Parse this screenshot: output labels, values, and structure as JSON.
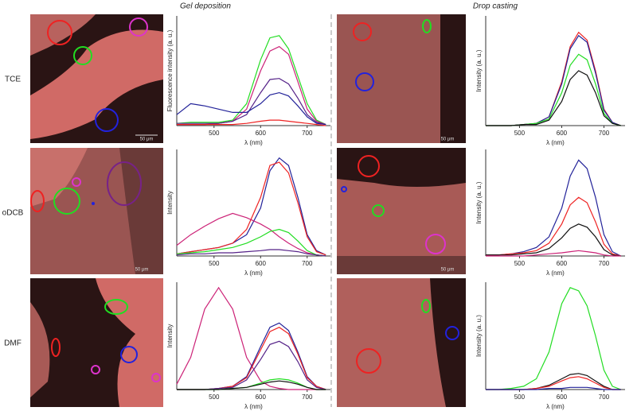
{
  "column_titles": [
    "Gel deposition",
    "Drop casting"
  ],
  "row_labels": [
    "TCE",
    "oDCB",
    "DMF"
  ],
  "scale_bar_labels": [
    "50 μm",
    "50 μm",
    "50 μm",
    "50 μm"
  ],
  "chart_data": [
    {
      "type": "line",
      "xlabel": "λ (nm)",
      "ylabel": "Fluorescence intensity (a. u.)",
      "x": [
        420,
        450,
        480,
        510,
        540,
        570,
        600,
        620,
        640,
        660,
        680,
        700,
        720,
        740
      ],
      "xlim": [
        420,
        750
      ],
      "xticks": [
        500,
        600,
        700
      ],
      "ylim": [
        0,
        1
      ],
      "series": [
        {
          "color": "#22dd22",
          "values": [
            0.02,
            0.03,
            0.03,
            0.03,
            0.05,
            0.2,
            0.6,
            0.8,
            0.82,
            0.7,
            0.45,
            0.2,
            0.05,
            0.01
          ]
        },
        {
          "color": "#cc2277",
          "values": [
            0.01,
            0.01,
            0.01,
            0.02,
            0.04,
            0.15,
            0.5,
            0.68,
            0.72,
            0.65,
            0.4,
            0.15,
            0.04,
            0.01
          ]
        },
        {
          "color": "#552288",
          "values": [
            0.02,
            0.02,
            0.02,
            0.02,
            0.04,
            0.1,
            0.3,
            0.42,
            0.43,
            0.38,
            0.25,
            0.1,
            0.03,
            0.01
          ]
        },
        {
          "color": "#222299",
          "values": [
            0.1,
            0.2,
            0.18,
            0.15,
            0.12,
            0.12,
            0.2,
            0.28,
            0.3,
            0.27,
            0.18,
            0.08,
            0.02,
            0.01
          ]
        },
        {
          "color": "#ee2222",
          "values": [
            0.01,
            0.01,
            0.01,
            0.01,
            0.01,
            0.02,
            0.04,
            0.05,
            0.05,
            0.04,
            0.03,
            0.02,
            0.01,
            0.0
          ]
        }
      ]
    },
    {
      "type": "line",
      "xlabel": "λ (nm)",
      "ylabel": "Intensity (a. u.)",
      "x": [
        420,
        450,
        480,
        510,
        540,
        570,
        600,
        620,
        640,
        660,
        680,
        700,
        720,
        740
      ],
      "xlim": [
        420,
        750
      ],
      "xticks": [
        500,
        600,
        700
      ],
      "ylim": [
        0,
        1
      ],
      "series": [
        {
          "color": "#ee2222",
          "values": [
            0.0,
            0.0,
            0.0,
            0.01,
            0.02,
            0.08,
            0.4,
            0.72,
            0.85,
            0.78,
            0.5,
            0.15,
            0.03,
            0.0
          ]
        },
        {
          "color": "#222299",
          "values": [
            0.0,
            0.0,
            0.0,
            0.01,
            0.02,
            0.08,
            0.38,
            0.7,
            0.82,
            0.76,
            0.48,
            0.14,
            0.03,
            0.0
          ]
        },
        {
          "color": "#22dd22",
          "values": [
            0.0,
            0.0,
            0.0,
            0.01,
            0.02,
            0.06,
            0.3,
            0.55,
            0.65,
            0.6,
            0.38,
            0.11,
            0.02,
            0.0
          ]
        },
        {
          "color": "#111111",
          "values": [
            0.0,
            0.0,
            0.0,
            0.01,
            0.01,
            0.05,
            0.22,
            0.42,
            0.5,
            0.46,
            0.3,
            0.09,
            0.02,
            0.0
          ]
        }
      ]
    },
    {
      "type": "line",
      "xlabel": "λ (nm)",
      "ylabel": "Intensity",
      "x": [
        420,
        450,
        480,
        510,
        540,
        570,
        600,
        620,
        640,
        660,
        680,
        700,
        720,
        740
      ],
      "xlim": [
        420,
        750
      ],
      "xticks": [
        500,
        600,
        700
      ],
      "ylim": [
        0,
        1
      ],
      "series": [
        {
          "color": "#222299",
          "values": [
            0.02,
            0.04,
            0.06,
            0.08,
            0.12,
            0.2,
            0.45,
            0.8,
            0.92,
            0.85,
            0.55,
            0.2,
            0.05,
            0.01
          ]
        },
        {
          "color": "#ee2222",
          "values": [
            0.02,
            0.04,
            0.06,
            0.08,
            0.12,
            0.25,
            0.55,
            0.85,
            0.88,
            0.78,
            0.5,
            0.18,
            0.04,
            0.01
          ]
        },
        {
          "color": "#cc2277",
          "values": [
            0.1,
            0.2,
            0.28,
            0.35,
            0.4,
            0.36,
            0.3,
            0.25,
            0.18,
            0.12,
            0.07,
            0.03,
            0.01,
            0.0
          ]
        },
        {
          "color": "#22dd22",
          "values": [
            0.02,
            0.03,
            0.04,
            0.06,
            0.08,
            0.12,
            0.18,
            0.23,
            0.25,
            0.22,
            0.14,
            0.05,
            0.01,
            0.0
          ]
        },
        {
          "color": "#552288",
          "values": [
            0.01,
            0.02,
            0.02,
            0.03,
            0.03,
            0.04,
            0.05,
            0.06,
            0.06,
            0.05,
            0.04,
            0.02,
            0.01,
            0.0
          ]
        }
      ]
    },
    {
      "type": "line",
      "xlabel": "λ (nm)",
      "ylabel": "Intensity (a. u.)",
      "x": [
        420,
        450,
        480,
        510,
        540,
        570,
        600,
        620,
        640,
        660,
        680,
        700,
        720,
        740
      ],
      "xlim": [
        420,
        750
      ],
      "xticks": [
        500,
        600,
        700
      ],
      "ylim": [
        0,
        1
      ],
      "series": [
        {
          "color": "#222299",
          "values": [
            0.01,
            0.01,
            0.02,
            0.04,
            0.08,
            0.18,
            0.45,
            0.75,
            0.9,
            0.82,
            0.55,
            0.2,
            0.04,
            0.0
          ]
        },
        {
          "color": "#ee2222",
          "values": [
            0.01,
            0.01,
            0.02,
            0.03,
            0.05,
            0.12,
            0.3,
            0.48,
            0.55,
            0.5,
            0.32,
            0.11,
            0.02,
            0.0
          ]
        },
        {
          "color": "#111111",
          "values": [
            0.01,
            0.01,
            0.01,
            0.02,
            0.03,
            0.07,
            0.17,
            0.26,
            0.3,
            0.27,
            0.18,
            0.06,
            0.01,
            0.0
          ]
        },
        {
          "color": "#cc2277",
          "values": [
            0.0,
            0.0,
            0.0,
            0.0,
            0.01,
            0.02,
            0.03,
            0.04,
            0.05,
            0.04,
            0.03,
            0.01,
            0.0,
            0.0
          ]
        }
      ]
    },
    {
      "type": "line",
      "xlabel": "λ (nm)",
      "ylabel": "Intensity",
      "x": [
        420,
        450,
        480,
        510,
        540,
        570,
        600,
        620,
        640,
        660,
        680,
        700,
        720,
        740
      ],
      "xlim": [
        420,
        750
      ],
      "xticks": [
        500,
        600,
        700
      ],
      "ylim": [
        0,
        1
      ],
      "series": [
        {
          "color": "#cc2277",
          "values": [
            0.05,
            0.3,
            0.75,
            0.95,
            0.75,
            0.3,
            0.08,
            0.03,
            0.01,
            0.0,
            0.0,
            0.0,
            0.0,
            0.0
          ]
        },
        {
          "color": "#222299",
          "values": [
            0.0,
            0.0,
            0.0,
            0.01,
            0.03,
            0.12,
            0.4,
            0.58,
            0.62,
            0.55,
            0.35,
            0.12,
            0.03,
            0.0
          ]
        },
        {
          "color": "#ee2222",
          "values": [
            0.0,
            0.0,
            0.0,
            0.01,
            0.03,
            0.11,
            0.37,
            0.54,
            0.58,
            0.52,
            0.33,
            0.11,
            0.03,
            0.0
          ]
        },
        {
          "color": "#552288",
          "values": [
            0.0,
            0.0,
            0.0,
            0.01,
            0.02,
            0.09,
            0.28,
            0.42,
            0.45,
            0.4,
            0.26,
            0.09,
            0.02,
            0.0
          ]
        },
        {
          "color": "#22dd22",
          "values": [
            0.0,
            0.0,
            0.0,
            0.0,
            0.01,
            0.02,
            0.06,
            0.09,
            0.1,
            0.09,
            0.06,
            0.02,
            0.0,
            0.0
          ]
        },
        {
          "color": "#111111",
          "values": [
            0.0,
            0.0,
            0.0,
            0.0,
            0.01,
            0.02,
            0.05,
            0.07,
            0.08,
            0.07,
            0.05,
            0.02,
            0.0,
            0.0
          ]
        }
      ]
    },
    {
      "type": "line",
      "xlabel": "λ (nm)",
      "ylabel": "Intensity (a. u.)",
      "x": [
        420,
        450,
        480,
        510,
        540,
        570,
        600,
        620,
        640,
        660,
        680,
        700,
        720,
        740
      ],
      "xlim": [
        420,
        750
      ],
      "xticks": [
        500,
        600,
        700
      ],
      "ylim": [
        0,
        1
      ],
      "series": [
        {
          "color": "#22dd22",
          "values": [
            0.0,
            0.0,
            0.01,
            0.03,
            0.1,
            0.35,
            0.8,
            0.95,
            0.92,
            0.78,
            0.5,
            0.18,
            0.03,
            0.0
          ]
        },
        {
          "color": "#111111",
          "values": [
            0.0,
            0.0,
            0.0,
            0.0,
            0.01,
            0.04,
            0.1,
            0.14,
            0.15,
            0.13,
            0.08,
            0.03,
            0.0,
            0.0
          ]
        },
        {
          "color": "#ee2222",
          "values": [
            0.0,
            0.0,
            0.0,
            0.0,
            0.01,
            0.03,
            0.08,
            0.11,
            0.12,
            0.1,
            0.06,
            0.02,
            0.0,
            0.0
          ]
        },
        {
          "color": "#222299",
          "values": [
            0.0,
            0.0,
            0.0,
            0.0,
            0.0,
            0.01,
            0.01,
            0.02,
            0.02,
            0.02,
            0.01,
            0.0,
            0.0,
            0.0
          ]
        }
      ]
    }
  ]
}
